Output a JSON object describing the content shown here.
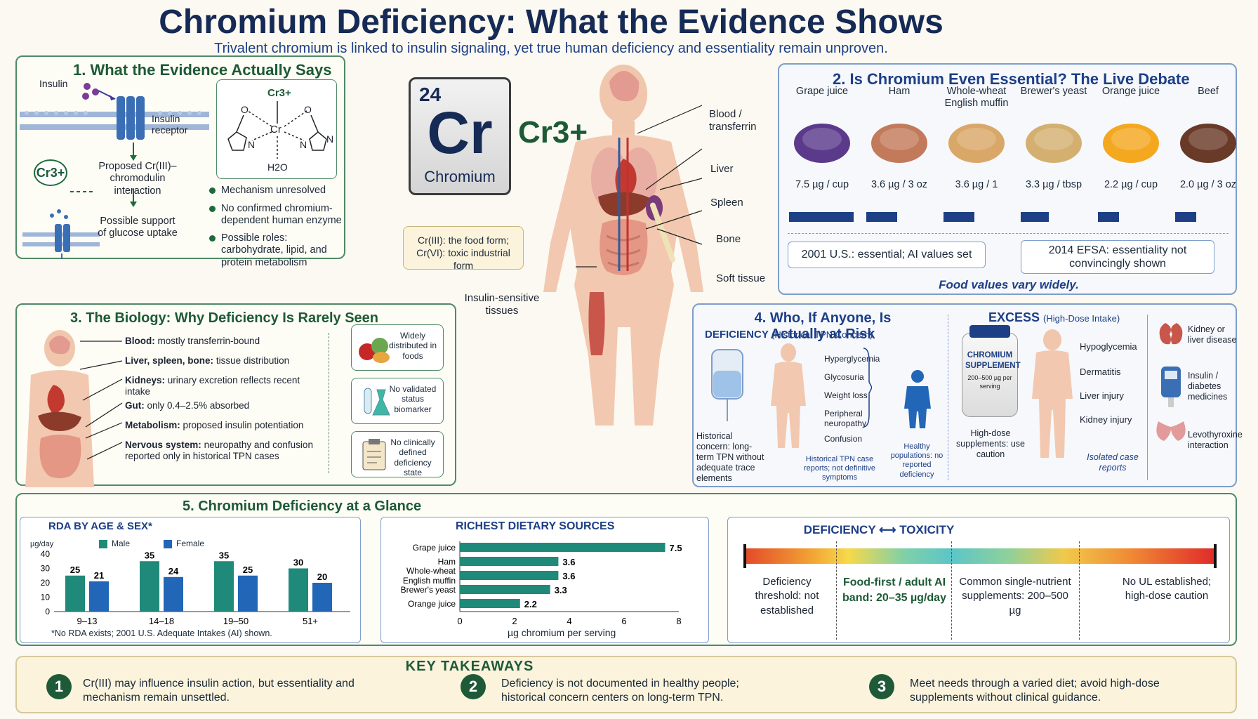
{
  "header": {
    "title": "Chromium Deficiency: What the Evidence Shows",
    "subtitle": "Trivalent chromium is linked to insulin signaling, yet true human deficiency and essentiality remain unproven."
  },
  "panel1": {
    "title": "1. What the Evidence Actually Says",
    "insulin": "Insulin",
    "receptor": "Insulin receptor",
    "cr3_badge": "Cr3+",
    "proposed": "Proposed Cr(III)–chromodulin interaction",
    "glucose": "Possible support of glucose uptake",
    "complex_top": "Cr3+",
    "complex_center": "Cr",
    "complex_water": "H2O",
    "complex_o1": "O",
    "complex_o2": "O",
    "complex_n1": "N",
    "complex_n2": "N",
    "complex_n3": "N",
    "bullets": [
      "Mechanism unresolved",
      "No confirmed chromium-dependent human enzyme",
      "Possible roles: carbohydrate, lipid, and protein metabolism"
    ]
  },
  "element": {
    "number": "24",
    "symbol": "Cr",
    "name": "Chromium",
    "ion": "Cr3+",
    "forms": "Cr(III): the food form; Cr(VI): toxic industrial form"
  },
  "body_labels": {
    "blood": "Blood / transferrin",
    "liver": "Liver",
    "spleen": "Spleen",
    "bone": "Bone",
    "soft": "Soft tissue",
    "insulin_sensitive": "Insulin-sensitive tissues"
  },
  "panel2": {
    "title": "2. Is Chromium Even Essential? The Live Debate",
    "foods": [
      {
        "name": "Grape juice",
        "value": "7.5 µg / cup",
        "amount": 7.5
      },
      {
        "name": "Ham",
        "value": "3.6 µg / 3 oz",
        "amount": 3.6
      },
      {
        "name": "Whole-wheat English muffin",
        "value": "3.6 µg / 1",
        "amount": 3.6
      },
      {
        "name": "Brewer's yeast",
        "value": "3.3 µg / tbsp",
        "amount": 3.3
      },
      {
        "name": "Orange juice",
        "value": "2.2 µg / cup",
        "amount": 2.2
      },
      {
        "name": "Beef",
        "value": "2.0 µg / 3 oz",
        "amount": 2.0
      }
    ],
    "us": "2001 U.S.: essential; AI values set",
    "efsa": "2014 EFSA: essentiality not convincingly shown",
    "note": "Food values vary widely."
  },
  "panel3": {
    "title": "3. The Biology: Why Deficiency Is Rarely Seen",
    "items": [
      {
        "head": "Blood:",
        "text": "mostly transferrin-bound"
      },
      {
        "head": "Liver, spleen, bone:",
        "text": "tissue distribution"
      },
      {
        "head": "Kidneys:",
        "text": "urinary excretion reflects recent intake"
      },
      {
        "head": "Gut:",
        "text": "only 0.4–2.5% absorbed"
      },
      {
        "head": "Metabolism:",
        "text": "proposed insulin potentiation"
      },
      {
        "head": "Nervous system:",
        "text": "neuropathy and confusion reported only in historical TPN cases"
      }
    ],
    "boxes": [
      "Widely distributed in foods",
      "No validated status biomarker",
      "No clinically defined deficiency state"
    ]
  },
  "panel4": {
    "title": "4. Who, If Anyone, Is Actually at Risk",
    "deficiency_head": "DEFICIENCY",
    "deficiency_sub": "(Historical TPN Concern)",
    "symptoms": [
      "Hyperglycemia",
      "Glycosuria",
      "Weight loss",
      "Peripheral neuropathy",
      "Confusion"
    ],
    "tpn_note": "Historical concern: long-term TPN without adequate trace elements",
    "case_note": "Historical TPN case reports; not definitive symptoms",
    "healthy": "Healthy populations: no reported deficiency",
    "excess_head": "EXCESS",
    "excess_sub": "(High-Dose Intake)",
    "bottle_line1": "CHROMIUM",
    "bottle_line2": "SUPPLEMENT",
    "bottle_line3": "200–500 µg per serving",
    "excess_symptoms": [
      "Hypoglycemia",
      "Dermatitis",
      "Liver injury",
      "Kidney injury"
    ],
    "highdose": "High-dose supplements: use caution",
    "isolated": "Isolated case reports",
    "risks": [
      "Kidney or liver disease",
      "Insulin / diabetes medicines",
      "Levothyroxine interaction"
    ]
  },
  "panel5": {
    "title": "5. Chromium Deficiency at a Glance",
    "rda_title": "RDA BY AGE & SEX*",
    "rda_unit": "µg/day",
    "legend_male": "Male",
    "legend_female": "Female",
    "rda_note": "*No RDA exists; 2001 U.S. Adequate Intakes (AI) shown.",
    "sources_title": "RICHEST DIETARY SOURCES",
    "sources_xlabel": "µg chromium per serving",
    "spectrum_title_left": "DEFICIENCY",
    "spectrum_title_arrow": "⟷",
    "spectrum_title_right": "TOXICITY",
    "spectrum": [
      "Deficiency threshold: not established",
      "Food-first / adult AI band: 20–35 µg/day",
      "Common single-nutrient supplements: 200–500 µg",
      "No UL established; high-dose caution"
    ]
  },
  "takeaways": {
    "title": "KEY TAKEAWAYS",
    "items": [
      {
        "num": "1",
        "text": "Cr(III) may influence insulin action, but essentiality and mechanism remain unsettled."
      },
      {
        "num": "2",
        "text": "Deficiency is not documented in healthy people; historical concern centers on long-term TPN."
      },
      {
        "num": "3",
        "text": "Meet needs through a varied diet; avoid high-dose supplements without clinical guidance."
      }
    ]
  },
  "colors": {
    "green": "#1d5a36",
    "blue": "#1d3f86",
    "teal": "#1f8a7a",
    "female": "#2266b8"
  },
  "chart_data": [
    {
      "type": "bar",
      "title": "RDA BY AGE & SEX*",
      "ylabel": "µg/day",
      "categories": [
        "9–13",
        "14–18",
        "19–50",
        "51+"
      ],
      "series": [
        {
          "name": "Male",
          "values": [
            25,
            35,
            35,
            30
          ]
        },
        {
          "name": "Female",
          "values": [
            21,
            24,
            25,
            20
          ]
        }
      ],
      "ylim": [
        0,
        40
      ],
      "yticks": [
        0,
        10,
        20,
        30,
        40
      ]
    },
    {
      "type": "bar",
      "orientation": "horizontal",
      "title": "RICHEST DIETARY SOURCES",
      "xlabel": "µg chromium per serving",
      "categories": [
        "Grape juice",
        "Ham",
        "Whole-wheat English muffin",
        "Brewer's yeast",
        "Orange juice"
      ],
      "values": [
        7.5,
        3.6,
        3.6,
        3.3,
        2.2
      ],
      "xlim": [
        0,
        8
      ],
      "xticks": [
        0,
        2,
        4,
        6,
        8
      ]
    }
  ]
}
